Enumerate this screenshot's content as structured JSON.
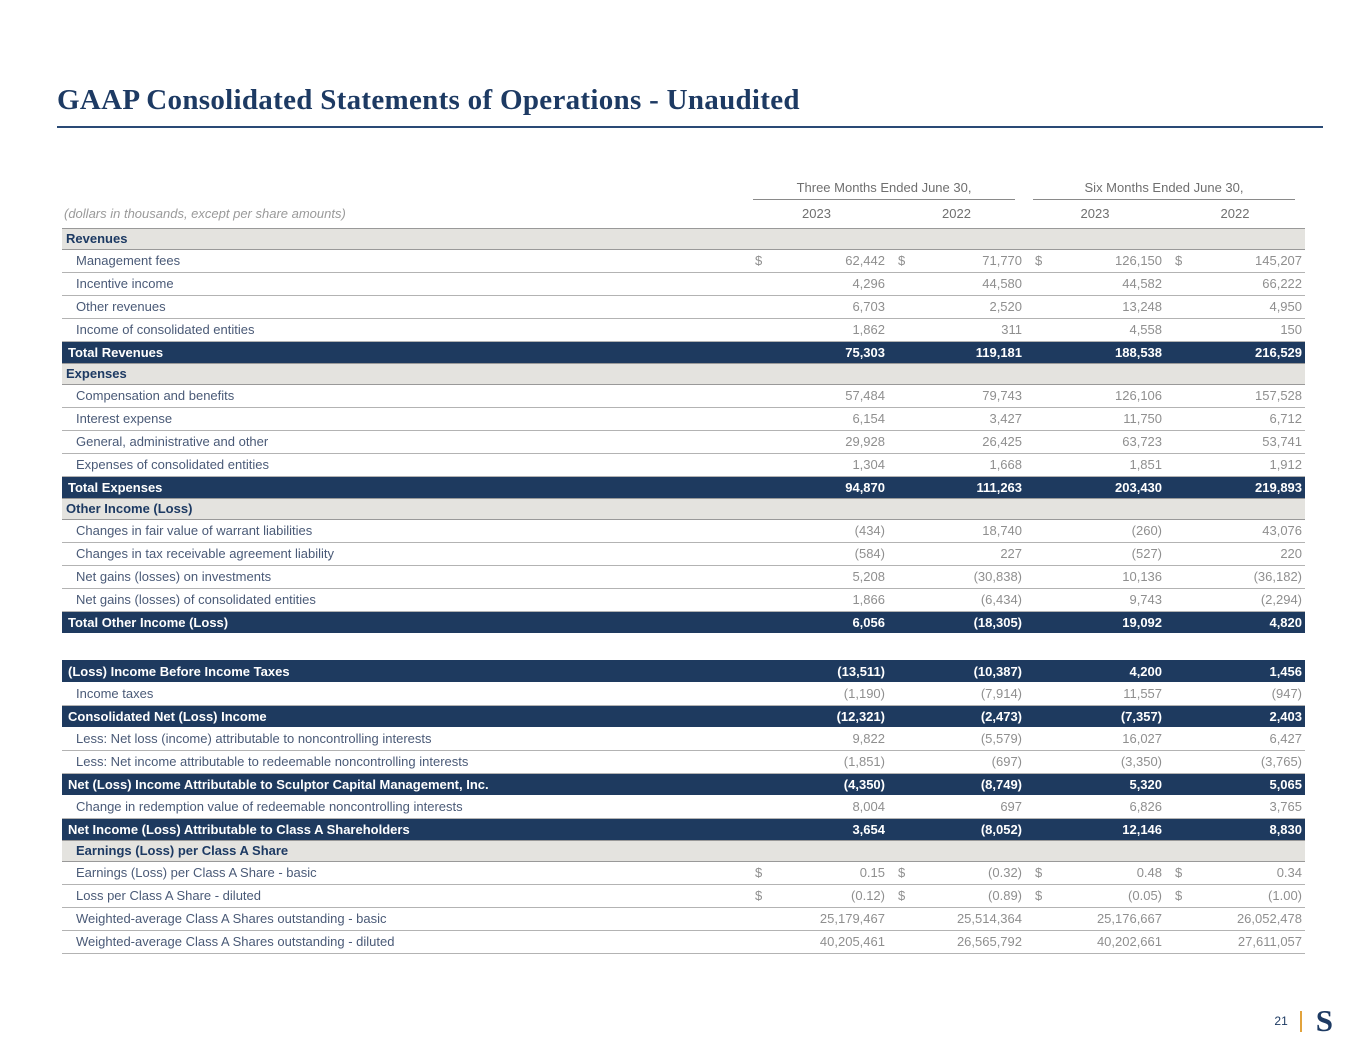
{
  "page": {
    "title": "GAAP Consolidated Statements of Operations - Unaudited",
    "page_number": "21",
    "logo_letter": "S"
  },
  "colors": {
    "navy": "#1e3a5f",
    "title_navy": "#1d3a63",
    "section_bg": "#e4e3df",
    "label_text": "#4a5a77",
    "number_text": "#8f8f8f",
    "gold": "#e2a33c"
  },
  "table": {
    "note": "(dollars in thousands, except per share amounts)",
    "col_groups": [
      "Three Months Ended June 30,",
      "Six Months Ended June 30,"
    ],
    "years": [
      "2023",
      "2022",
      "2023",
      "2022"
    ],
    "rows": [
      {
        "type": "section",
        "label": "Revenues"
      },
      {
        "type": "item",
        "label": "Management fees",
        "dollar": true,
        "values": [
          "62,442",
          "71,770",
          "126,150",
          "145,207"
        ]
      },
      {
        "type": "item",
        "label": "Incentive income",
        "values": [
          "4,296",
          "44,580",
          "44,582",
          "66,222"
        ]
      },
      {
        "type": "item",
        "label": "Other revenues",
        "values": [
          "6,703",
          "2,520",
          "13,248",
          "4,950"
        ]
      },
      {
        "type": "item",
        "label": "Income of consolidated entities",
        "values": [
          "1,862",
          "311",
          "4,558",
          "150"
        ]
      },
      {
        "type": "total",
        "label": "Total Revenues",
        "values": [
          "75,303",
          "119,181",
          "188,538",
          "216,529"
        ]
      },
      {
        "type": "section",
        "label": "Expenses"
      },
      {
        "type": "item",
        "label": "Compensation and benefits",
        "values": [
          "57,484",
          "79,743",
          "126,106",
          "157,528"
        ]
      },
      {
        "type": "item",
        "label": "Interest expense",
        "values": [
          "6,154",
          "3,427",
          "11,750",
          "6,712"
        ]
      },
      {
        "type": "item",
        "label": "General, administrative and other",
        "values": [
          "29,928",
          "26,425",
          "63,723",
          "53,741"
        ]
      },
      {
        "type": "item",
        "label": "Expenses of consolidated entities",
        "values": [
          "1,304",
          "1,668",
          "1,851",
          "1,912"
        ]
      },
      {
        "type": "total",
        "label": "Total Expenses",
        "values": [
          "94,870",
          "111,263",
          "203,430",
          "219,893"
        ]
      },
      {
        "type": "section",
        "label": "Other Income (Loss)"
      },
      {
        "type": "item",
        "label": "Changes in fair value of warrant liabilities",
        "values": [
          "(434)",
          "18,740",
          "(260)",
          "43,076"
        ]
      },
      {
        "type": "item",
        "label": "Changes in tax receivable agreement liability",
        "values": [
          "(584)",
          "227",
          "(527)",
          "220"
        ]
      },
      {
        "type": "item",
        "label": "Net gains (losses) on investments",
        "values": [
          "5,208",
          "(30,838)",
          "10,136",
          "(36,182)"
        ]
      },
      {
        "type": "item",
        "label": "Net gains (losses) of consolidated entities",
        "values": [
          "1,866",
          "(6,434)",
          "9,743",
          "(2,294)"
        ]
      },
      {
        "type": "total",
        "label": "Total Other Income (Loss)",
        "values": [
          "6,056",
          "(18,305)",
          "19,092",
          "4,820"
        ]
      },
      {
        "type": "spacer"
      },
      {
        "type": "total",
        "label": "(Loss) Income Before Income Taxes",
        "values": [
          "(13,511)",
          "(10,387)",
          "4,200",
          "1,456"
        ]
      },
      {
        "type": "item",
        "label": "Income taxes",
        "values": [
          "(1,190)",
          "(7,914)",
          "11,557",
          "(947)"
        ]
      },
      {
        "type": "total",
        "label": "Consolidated Net (Loss) Income",
        "values": [
          "(12,321)",
          "(2,473)",
          "(7,357)",
          "2,403"
        ]
      },
      {
        "type": "item",
        "label": "Less: Net loss (income) attributable to noncontrolling interests",
        "values": [
          "9,822",
          "(5,579)",
          "16,027",
          "6,427"
        ]
      },
      {
        "type": "item",
        "label": "Less: Net income attributable to redeemable noncontrolling interests",
        "values": [
          "(1,851)",
          "(697)",
          "(3,350)",
          "(3,765)"
        ]
      },
      {
        "type": "total",
        "label": "Net (Loss) Income Attributable to Sculptor Capital Management, Inc.",
        "values": [
          "(4,350)",
          "(8,749)",
          "5,320",
          "5,065"
        ]
      },
      {
        "type": "item",
        "label": "Change in redemption value of redeemable noncontrolling interests",
        "values": [
          "8,004",
          "697",
          "6,826",
          "3,765"
        ]
      },
      {
        "type": "total",
        "label": "Net Income (Loss) Attributable to Class A Shareholders",
        "values": [
          "3,654",
          "(8,052)",
          "12,146",
          "8,830"
        ]
      },
      {
        "type": "section2",
        "label": "Earnings (Loss) per Class A Share"
      },
      {
        "type": "item",
        "label": "Earnings (Loss) per Class A Share - basic",
        "dollar": true,
        "values": [
          "0.15",
          "(0.32)",
          "0.48",
          "0.34"
        ]
      },
      {
        "type": "item",
        "label": "Loss per Class A Share - diluted",
        "dollar": true,
        "values": [
          "(0.12)",
          "(0.89)",
          "(0.05)",
          "(1.00)"
        ]
      },
      {
        "type": "item",
        "label": "Weighted-average Class A Shares outstanding - basic",
        "values": [
          "25,179,467",
          "25,514,364",
          "25,176,667",
          "26,052,478"
        ]
      },
      {
        "type": "item",
        "label": "Weighted-average Class A Shares outstanding - diluted",
        "values": [
          "40,205,461",
          "26,565,792",
          "40,202,661",
          "27,611,057"
        ]
      }
    ]
  }
}
